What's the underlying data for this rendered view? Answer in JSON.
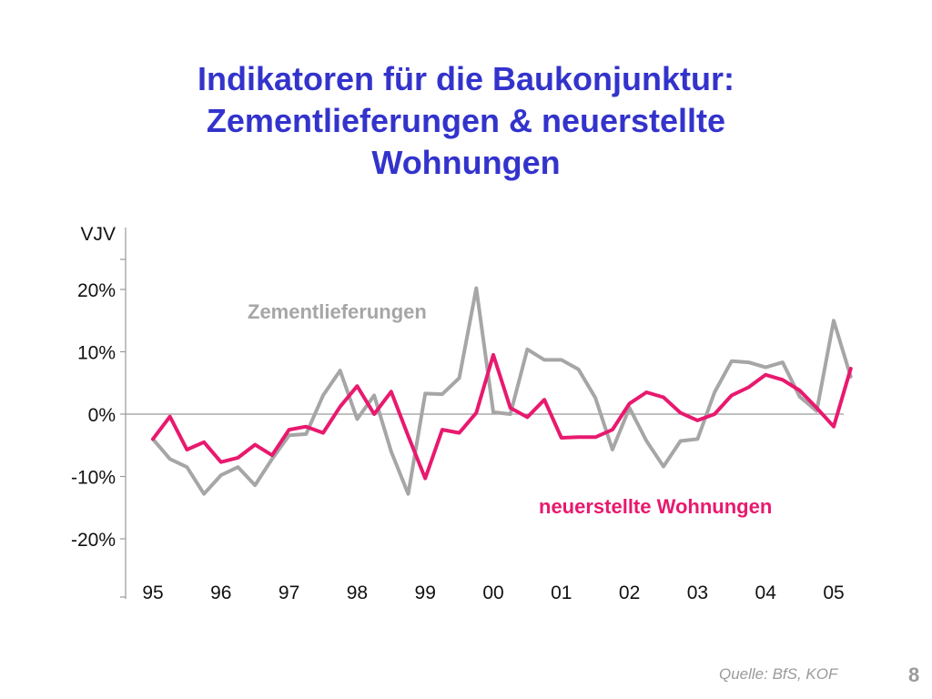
{
  "slide": {
    "title_lines": [
      "Indikatoren für die Baukonjunktur:",
      "Zementlieferungen & neuerstellte",
      "Wohnungen"
    ],
    "source": "Quelle: BfS, KOF",
    "page_number": "8"
  },
  "colors": {
    "title": "#3333cc",
    "series_cement": "#a6a6a6",
    "series_housing": "#e8196e",
    "axis": "#9a9a9a",
    "text": "#111111"
  },
  "chart_data": {
    "type": "line",
    "title": "",
    "ylabel": "VJV",
    "xlabel": "",
    "ylim": [
      -0.28,
      0.3
    ],
    "ytick_values": [
      -0.2,
      -0.1,
      0,
      0.1,
      0.2
    ],
    "ytick_labels": [
      "-20%",
      "-10%",
      "0%",
      "10%",
      "20%"
    ],
    "x_tick_labels": [
      "95",
      "96",
      "97",
      "98",
      "99",
      "00",
      "01",
      "02",
      "03",
      "04",
      "05"
    ],
    "x_start": 1995.0,
    "x_step": 0.25,
    "grid": false,
    "legend": "inline labels",
    "series": [
      {
        "name": "Zementlieferungen",
        "color": "#a6a6a6",
        "values": [
          -0.04,
          -0.072,
          -0.085,
          -0.128,
          -0.098,
          -0.085,
          -0.114,
          -0.072,
          -0.034,
          -0.032,
          0.03,
          0.07,
          -0.008,
          0.03,
          -0.06,
          -0.128,
          0.033,
          0.032,
          0.058,
          0.202,
          0.003,
          0.0,
          0.104,
          0.087,
          0.087,
          0.072,
          0.026,
          -0.057,
          0.01,
          -0.043,
          -0.084,
          -0.043,
          -0.04,
          0.035,
          0.085,
          0.083,
          0.075,
          0.083,
          0.028,
          0.005,
          0.15,
          0.06
        ]
      },
      {
        "name": "neuerstellte Wohnungen",
        "color": "#e8196e",
        "values": [
          -0.04,
          -0.004,
          -0.057,
          -0.045,
          -0.077,
          -0.07,
          -0.049,
          -0.066,
          -0.025,
          -0.02,
          -0.03,
          0.012,
          0.045,
          0.0,
          0.036,
          -0.035,
          -0.103,
          -0.025,
          -0.03,
          0.002,
          0.095,
          0.01,
          -0.005,
          0.023,
          -0.038,
          -0.037,
          -0.037,
          -0.025,
          0.017,
          0.035,
          0.027,
          0.002,
          -0.01,
          0.0,
          0.03,
          0.043,
          0.063,
          0.055,
          0.038,
          0.01,
          -0.02,
          0.073
        ]
      }
    ],
    "annotations": [
      {
        "text": "Zementlieferungen",
        "series": 0
      },
      {
        "text": "neuerstellte Wohnungen",
        "series": 1
      }
    ]
  }
}
